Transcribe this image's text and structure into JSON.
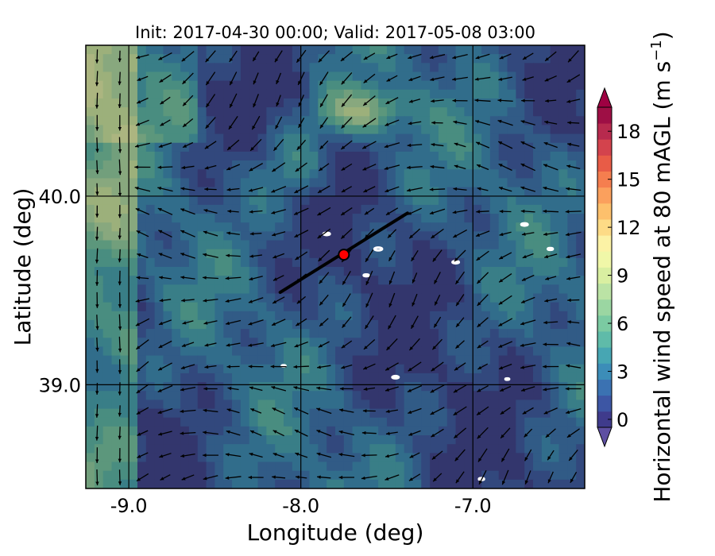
{
  "chart_data": {
    "type": "heatmap",
    "title": "Init: 2017-04-30 00:00; Valid: 2017-05-08 03:00",
    "xlabel": "Longitude (deg)",
    "ylabel": "Latitude (deg)",
    "xlim": [
      -9.25,
      -6.35
    ],
    "ylim": [
      38.45,
      40.8
    ],
    "x_ticks": [
      -9.0,
      -8.0,
      -7.0
    ],
    "x_tick_labels": [
      "-9.0",
      "-8.0",
      "-7.0"
    ],
    "y_ticks": [
      39.0,
      40.0
    ],
    "y_tick_labels": [
      "39.0",
      "40.0"
    ],
    "grid": true,
    "colorbar": {
      "label": "Horizontal wind speed at 80 mAGL (m s",
      "label_superscript": "−1",
      "label_close": ")",
      "min": 0,
      "max": 20,
      "step": 1,
      "ticks": [
        0,
        3,
        6,
        9,
        12,
        15,
        18
      ],
      "tick_labels": [
        "0",
        "3",
        "6",
        "9",
        "12",
        "15",
        "18"
      ],
      "extend": "both",
      "colors": [
        "#3f3b8c",
        "#3d56a4",
        "#3b72b2",
        "#3c8db8",
        "#47a6b3",
        "#5fbba9",
        "#7bcaa2",
        "#9bd6a2",
        "#bbe3a5",
        "#d9efa1",
        "#f0f7a8",
        "#fcf2a5",
        "#fddb86",
        "#fdc06c",
        "#fba05d",
        "#f57e4f",
        "#e85c47",
        "#d3434d",
        "#b72a4e",
        "#9e0f45"
      ],
      "under_color": "#5e4fa2",
      "over_color": "#9e0142"
    },
    "site": {
      "lon": -7.75,
      "lat": 39.69,
      "marker": "circle",
      "color": "#ff0000"
    },
    "transect": {
      "lon": [
        -8.12,
        -7.38
      ],
      "lat": [
        39.49,
        39.91
      ]
    },
    "wind_field_note": ""
  }
}
